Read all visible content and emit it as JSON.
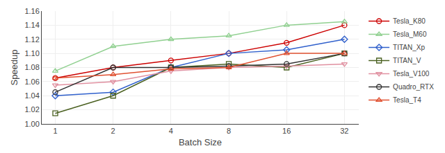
{
  "chart_data": {
    "type": "line",
    "xlabel": "Batch Size",
    "ylabel": "Speedup",
    "x": [
      1,
      2,
      4,
      8,
      16,
      32
    ],
    "series": [
      {
        "name": "Tesla_K80",
        "color": "#cc0000",
        "marker": "circle",
        "values": [
          1.065,
          1.08,
          1.09,
          1.1,
          1.115,
          1.14
        ]
      },
      {
        "name": "Tesla_M60",
        "color": "#90d090",
        "marker": "triangle-up",
        "values": [
          1.075,
          1.11,
          1.12,
          1.125,
          1.14,
          1.145
        ]
      },
      {
        "name": "TITAN_Xp",
        "color": "#3060cc",
        "marker": "diamond",
        "values": [
          1.04,
          1.045,
          1.08,
          1.1,
          1.105,
          1.12
        ]
      },
      {
        "name": "TITAN_V",
        "color": "#4a6020",
        "marker": "square",
        "values": [
          1.015,
          1.04,
          1.08,
          1.085,
          1.08,
          1.1
        ]
      },
      {
        "name": "Tesla_V100",
        "color": "#e090a0",
        "marker": "triangle-down",
        "values": [
          1.055,
          1.06,
          1.075,
          1.08,
          1.082,
          1.085
        ]
      },
      {
        "name": "Quadro_RTX",
        "color": "#303030",
        "marker": "circle",
        "values": [
          1.045,
          1.08,
          1.08,
          1.082,
          1.085,
          1.1
        ]
      },
      {
        "name": "Tesla_T4",
        "color": "#e05030",
        "marker": "triangle-up",
        "values": [
          1.065,
          1.07,
          1.078,
          1.08,
          1.1,
          1.1
        ]
      }
    ],
    "log": "x",
    "xlim": [
      0.85,
      38
    ],
    "xticks": [
      1,
      2,
      4,
      8,
      16,
      32
    ],
    "ylim": [
      1.0,
      1.16
    ],
    "yticks": [
      {
        "value": 1.0,
        "label": "1.00"
      },
      {
        "value": 1.02,
        "label": "1.02"
      },
      {
        "value": 1.04,
        "label": "1.04"
      },
      {
        "value": 1.06,
        "label": "1.06"
      },
      {
        "value": 1.08,
        "label": "1.08"
      },
      {
        "value": 1.1,
        "label": "1.10"
      },
      {
        "value": 1.12,
        "label": "1.12"
      },
      {
        "value": 1.14,
        "label": "1.14"
      },
      {
        "value": 1.16,
        "label": "1.16"
      }
    ],
    "grid": true,
    "legend": "right"
  }
}
